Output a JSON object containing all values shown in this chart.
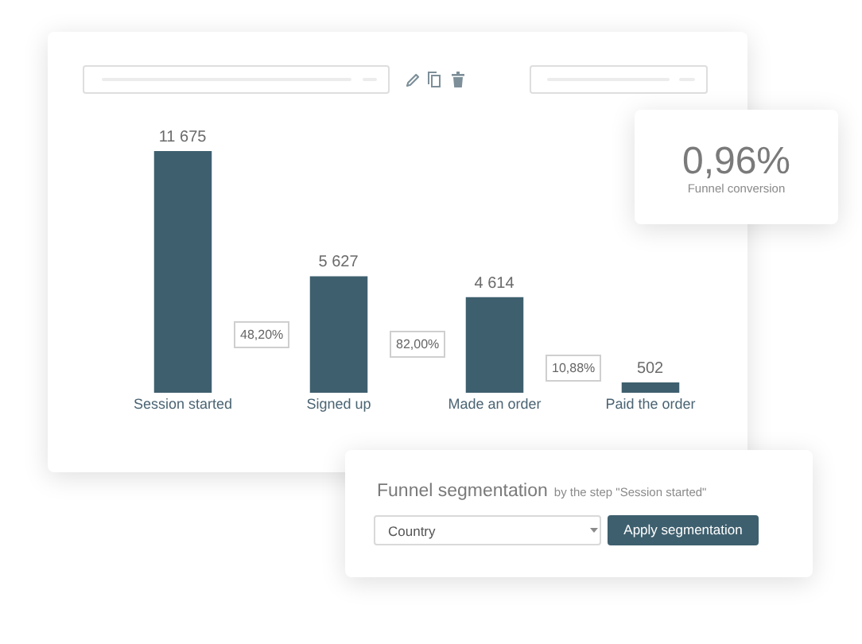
{
  "chart_data": [
    {
      "type": "bar",
      "categories": [
        "Session started",
        "Signed up",
        "Made an order",
        "Paid the order"
      ],
      "values": [
        11675,
        5627,
        4614,
        502
      ],
      "color": "#3e5f6e",
      "value_labels": [
        "11 675",
        "5 627",
        "4 614",
        "502"
      ],
      "annotations": [
        "48,20%",
        "82,00%",
        "10,88%"
      ]
    },
    {
      "type": "other",
      "annotations": [
        "0,96%",
        "Funnel conversion"
      ]
    },
    {
      "type": "other",
      "title": "Funnel segmentation",
      "subtitle": "by the step \"Session started\"",
      "annotations": [
        "Country",
        "Apply segmentation"
      ]
    }
  ]
}
